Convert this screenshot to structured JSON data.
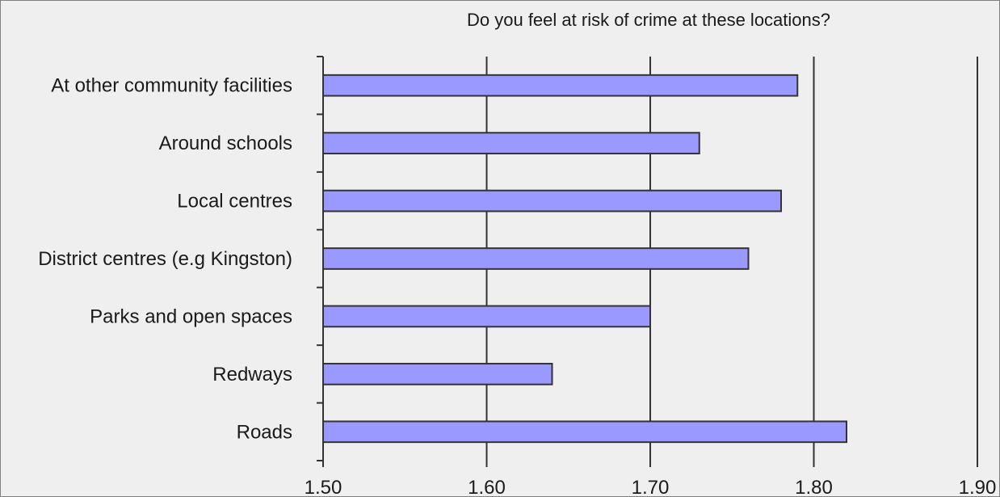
{
  "chart_data": {
    "type": "bar",
    "orientation": "horizontal",
    "title": "Do you feel at risk of crime at these locations?",
    "xlabel": "",
    "ylabel": "",
    "categories": [
      "At other community facilities",
      "Around schools",
      "Local centres",
      "District centres (e.g Kingston)",
      "Parks and open spaces",
      "Redways",
      "Roads"
    ],
    "values": [
      1.79,
      1.73,
      1.78,
      1.76,
      1.7,
      1.64,
      1.82
    ],
    "xlim": [
      1.5,
      1.9
    ],
    "xticks": [
      "1.50",
      "1.60",
      "1.70",
      "1.80",
      "1.90"
    ],
    "grid": "vertical",
    "legend": "none",
    "bar_color": "#9999ff",
    "bar_edge_color": "#333333",
    "background_color": "#efefef"
  }
}
